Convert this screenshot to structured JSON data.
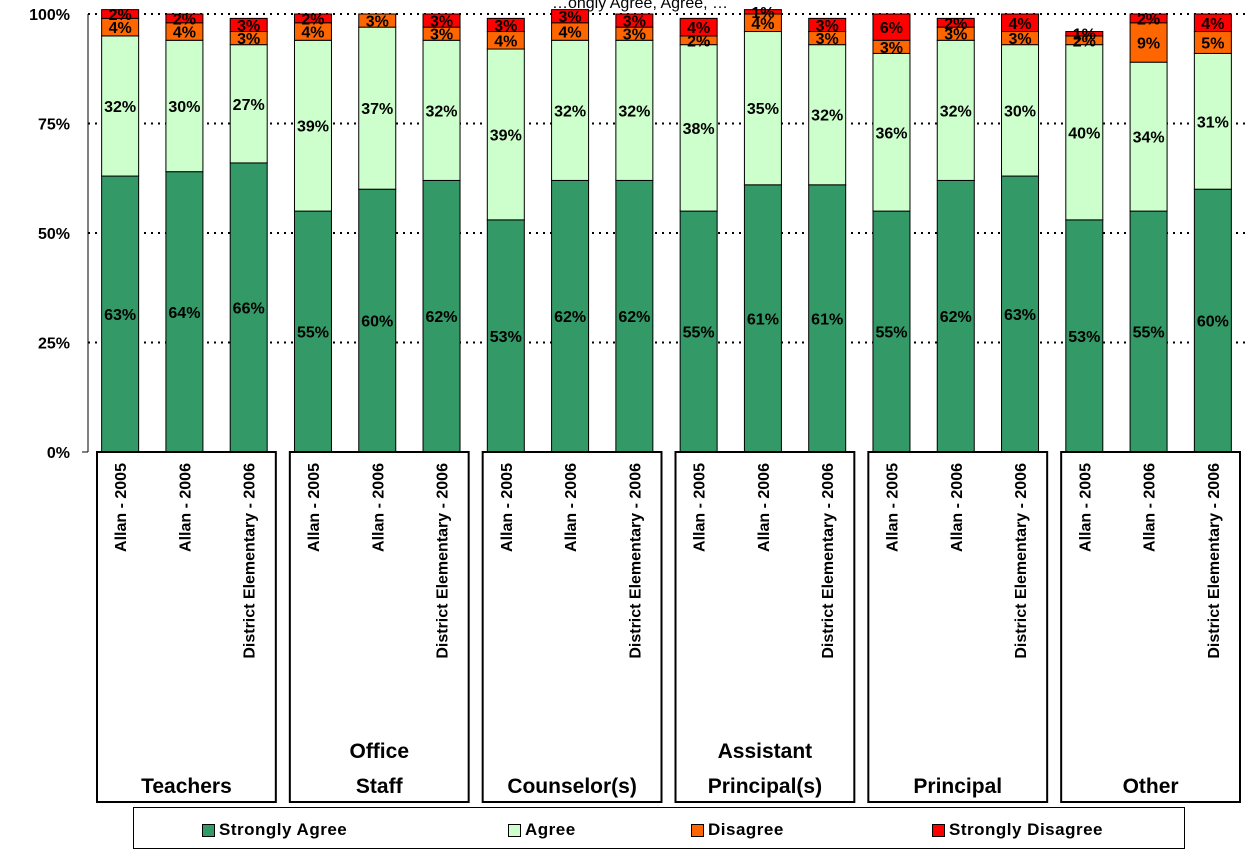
{
  "chart_data": {
    "type": "bar",
    "stacked": true,
    "percent": true,
    "title": "…ongly Agree, Agree, …",
    "ylim": [
      0,
      100
    ],
    "yticks": [
      "0%",
      "25%",
      "50%",
      "75%",
      "100%"
    ],
    "grid": true,
    "legend_position": "bottom",
    "groups": [
      {
        "name": "Teachers",
        "categories": [
          "Allan - 2005",
          "Allan - 2006",
          "District Elementary - 2006"
        ]
      },
      {
        "name": "Office Staff",
        "categories": [
          "Allan - 2005",
          "Allan - 2006",
          "District Elementary - 2006"
        ]
      },
      {
        "name": "Counselor(s)",
        "categories": [
          "Allan - 2005",
          "Allan - 2006",
          "District Elementary - 2006"
        ]
      },
      {
        "name": "Assistant Principal(s)",
        "categories": [
          "Allan - 2005",
          "Allan - 2006",
          "District Elementary - 2006"
        ]
      },
      {
        "name": "Principal",
        "categories": [
          "Allan - 2005",
          "Allan - 2006",
          "District Elementary - 2006"
        ]
      },
      {
        "name": "Other",
        "categories": [
          "Allan - 2005",
          "Allan - 2006",
          "District Elementary - 2006"
        ]
      }
    ],
    "series": [
      {
        "name": "Strongly Agree",
        "color": "#339966",
        "values": [
          63,
          64,
          66,
          55,
          60,
          62,
          53,
          62,
          62,
          55,
          61,
          61,
          55,
          62,
          63,
          53,
          55,
          60
        ],
        "labels": [
          "63%",
          "64%",
          "66%",
          "55%",
          "60%",
          "62%",
          "53%",
          "62%",
          "62%",
          "55%",
          "61%",
          "61%",
          "55%",
          "62%",
          "63%",
          "53%",
          "55%",
          "60%"
        ]
      },
      {
        "name": "Agree",
        "color": "#ccffcc",
        "values": [
          32,
          30,
          27,
          39,
          37,
          32,
          39,
          32,
          32,
          38,
          35,
          32,
          36,
          32,
          30,
          40,
          34,
          31
        ],
        "labels": [
          "32%",
          "30%",
          "27%",
          "39%",
          "37%",
          "32%",
          "39%",
          "32%",
          "32%",
          "38%",
          "35%",
          "32%",
          "36%",
          "32%",
          "30%",
          "40%",
          "34%",
          "31%"
        ]
      },
      {
        "name": "Disagree",
        "color": "#ff6600",
        "values": [
          4,
          4,
          3,
          4,
          3,
          3,
          4,
          4,
          3,
          2,
          4,
          3,
          3,
          3,
          3,
          2,
          9,
          5
        ],
        "labels": [
          "4%",
          "4%",
          "3%",
          "4%",
          "3%",
          "3%",
          "4%",
          "4%",
          "3%",
          "2%",
          "4%",
          "3%",
          "3%",
          "3%",
          "3%",
          "2%",
          "9%",
          "5%"
        ]
      },
      {
        "name": "Strongly Disagree",
        "color": "#ff0000",
        "values": [
          2,
          2,
          3,
          2,
          0,
          3,
          3,
          3,
          3,
          4,
          1,
          3,
          6,
          2,
          4,
          1,
          2,
          4
        ],
        "labels": [
          "2%",
          "2%",
          "3%",
          "2%",
          "",
          "3%",
          "3%",
          "3%",
          "3%",
          "4%",
          "1%",
          "3%",
          "6%",
          "2%",
          "4%",
          "1%",
          "2%",
          "4%"
        ]
      }
    ]
  }
}
